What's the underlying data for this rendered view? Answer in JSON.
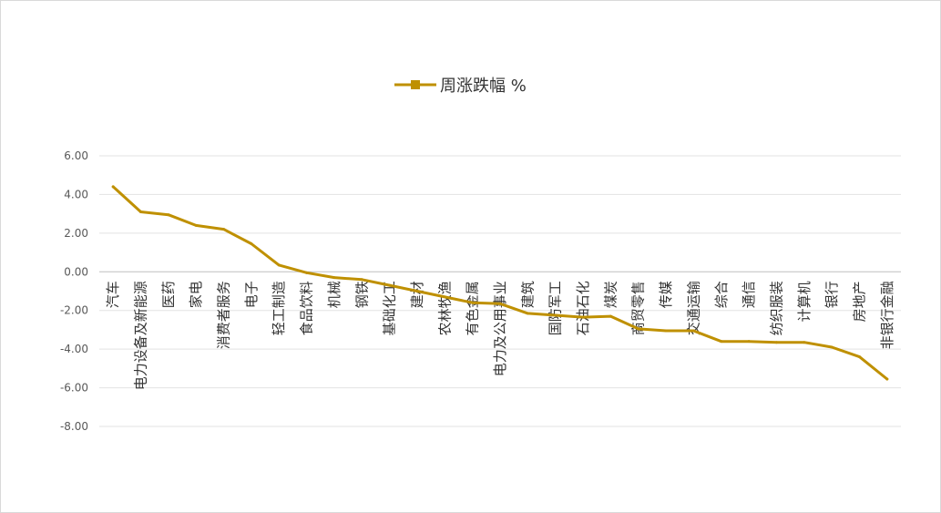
{
  "chart_data": {
    "type": "line",
    "legend": {
      "position": "top-center",
      "label": "周涨跌幅 %"
    },
    "series": [
      {
        "name": "周涨跌幅 %",
        "color": "#BF9000",
        "marker": "square"
      }
    ],
    "categories": [
      "汽车",
      "电力设备及新能源",
      "医药",
      "家电",
      "消费者服务",
      "电子",
      "轻工制造",
      "食品饮料",
      "机械",
      "钢铁",
      "基础化工",
      "建材",
      "农林牧渔",
      "有色金属",
      "电力及公用事业",
      "建筑",
      "国防军工",
      "石油石化",
      "煤炭",
      "商贸零售",
      "传媒",
      "交通运输",
      "综合",
      "通信",
      "纺织服装",
      "计算机",
      "银行",
      "房地产",
      "非银行金融"
    ],
    "values": [
      4.4,
      3.1,
      2.95,
      2.4,
      2.2,
      1.45,
      0.35,
      -0.05,
      -0.3,
      -0.4,
      -0.7,
      -1.0,
      -1.3,
      -1.6,
      -1.65,
      -2.15,
      -2.25,
      -2.35,
      -2.3,
      -2.95,
      -3.05,
      -3.05,
      -3.6,
      -3.6,
      -3.65,
      -3.65,
      -3.9,
      -4.4,
      -5.55
    ],
    "y_axis": {
      "min": -8,
      "max": 6,
      "step": 2,
      "tick_labels": [
        "6.00",
        "4.00",
        "2.00",
        "0.00",
        "-2.00",
        "-4.00",
        "-6.00",
        "-8.00"
      ]
    },
    "grid": true
  }
}
